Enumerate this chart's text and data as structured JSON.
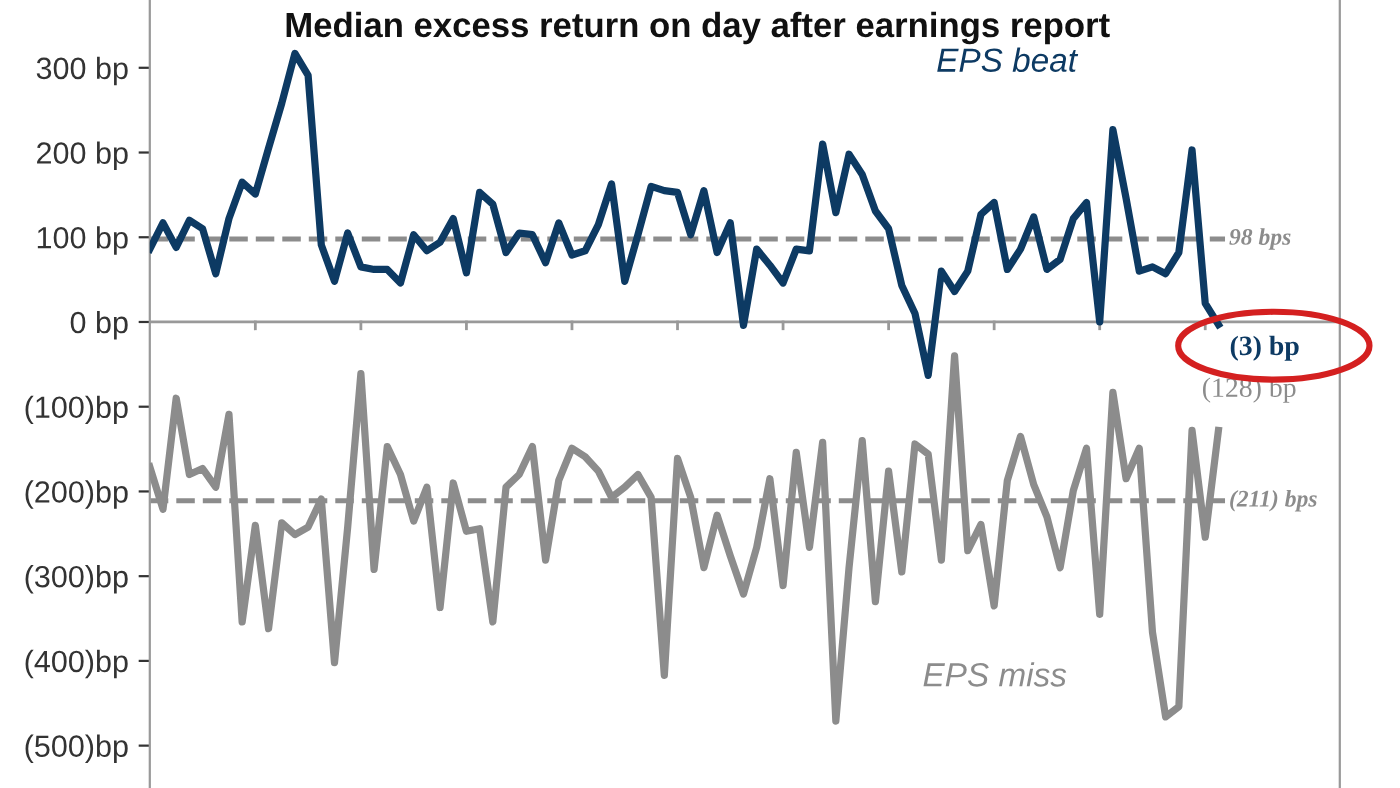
{
  "chart_data": {
    "type": "line",
    "title": "Median excess return on day after earnings report",
    "categories": [
      null,
      null,
      null,
      null,
      null,
      null,
      null,
      null,
      null,
      null,
      null,
      null,
      null,
      null,
      null,
      null,
      null,
      null,
      null,
      null,
      null,
      null,
      null,
      null,
      null,
      null,
      null,
      null,
      null,
      null,
      null,
      null,
      null,
      null,
      null,
      null,
      null,
      null,
      null,
      null,
      null,
      null,
      null,
      null,
      null,
      null,
      null,
      null,
      null,
      null,
      null,
      null,
      null,
      null,
      null,
      null,
      null,
      null,
      null,
      null,
      null,
      null,
      null,
      null,
      null,
      null,
      null,
      null,
      null,
      null,
      null,
      null,
      null,
      null,
      null,
      null,
      null,
      null,
      null,
      null,
      null,
      null
    ],
    "series": [
      {
        "name": "EPS beat",
        "color": "#0d3a63",
        "values": [
          86,
          117,
          88,
          120,
          110,
          57,
          122,
          165,
          151,
          205,
          258,
          317,
          291,
          91,
          48,
          105,
          65,
          62,
          62,
          46,
          103,
          84,
          94,
          122,
          58,
          153,
          139,
          82,
          105,
          103,
          70,
          117,
          79,
          84,
          115,
          163,
          48,
          103,
          160,
          155,
          153,
          103,
          155,
          82,
          117,
          -4,
          86,
          67,
          46,
          86,
          84,
          210,
          129,
          198,
          174,
          131,
          110,
          43,
          10,
          -63,
          60,
          36,
          60,
          127,
          141,
          62,
          86,
          124,
          62,
          74,
          122,
          141,
          0,
          227,
          146,
          60,
          65,
          57,
          82,
          203,
          22,
          -3
        ],
        "value_labels": [
          null,
          null,
          null,
          null,
          null,
          null,
          null,
          null,
          null,
          null,
          null,
          null,
          null,
          null,
          null,
          null,
          null,
          null,
          null,
          null,
          null,
          null,
          null,
          null,
          null,
          null,
          null,
          null,
          null,
          null,
          null,
          null,
          null,
          null,
          null,
          null,
          null,
          null,
          null,
          null,
          null,
          null,
          null,
          null,
          null,
          null,
          null,
          null,
          null,
          null,
          null,
          null,
          null,
          null,
          null,
          null,
          null,
          null,
          null,
          null,
          null,
          null,
          null,
          null,
          null,
          null,
          null,
          null,
          null,
          null,
          null,
          null,
          null,
          null,
          null,
          null,
          null,
          null,
          null,
          null,
          null,
          "(3) bp"
        ]
      },
      {
        "name": "EPS miss",
        "color": "#8c8c8c",
        "values": [
          -171,
          -221,
          -90,
          -180,
          -173,
          -195,
          -109,
          -354,
          -240,
          -362,
          -237,
          -251,
          -242,
          -209,
          -402,
          -242,
          -61,
          -292,
          -147,
          -180,
          -235,
          -195,
          -337,
          -190,
          -247,
          -244,
          -354,
          -195,
          -180,
          -147,
          -281,
          -187,
          -149,
          -159,
          -176,
          -207,
          -195,
          -180,
          -207,
          -417,
          -161,
          -207,
          -290,
          -228,
          -276,
          -321,
          -266,
          -185,
          -311,
          -154,
          -266,
          -142,
          -471,
          -290,
          -140,
          -330,
          -176,
          -295,
          -144,
          -156,
          -281,
          -40,
          -270,
          -239,
          -335,
          -187,
          -135,
          -192,
          -230,
          -290,
          -199,
          -149,
          -345,
          -83,
          -185,
          -149,
          -366,
          -466,
          -454,
          -128,
          -254,
          -128
        ],
        "value_labels": [
          null,
          null,
          null,
          null,
          null,
          null,
          null,
          null,
          null,
          null,
          null,
          null,
          null,
          null,
          null,
          null,
          null,
          null,
          null,
          null,
          null,
          null,
          null,
          null,
          null,
          null,
          null,
          null,
          null,
          null,
          null,
          null,
          null,
          null,
          null,
          null,
          null,
          null,
          null,
          null,
          null,
          null,
          null,
          null,
          null,
          null,
          null,
          null,
          null,
          null,
          null,
          null,
          null,
          null,
          null,
          null,
          null,
          null,
          null,
          null,
          null,
          null,
          null,
          null,
          null,
          null,
          null,
          null,
          null,
          null,
          null,
          null,
          null,
          null,
          null,
          null,
          null,
          null,
          null,
          null,
          null,
          "(128) bp"
        ]
      }
    ],
    "ylim": [
      -550,
      380
    ],
    "yticks": [
      {
        "value": 300,
        "label": "300 bp"
      },
      {
        "value": 200,
        "label": "200 bp"
      },
      {
        "value": 100,
        "label": "100 bp"
      },
      {
        "value": 0,
        "label": "0 bp"
      },
      {
        "value": -100,
        "label": "(100)bp"
      },
      {
        "value": -200,
        "label": "(200)bp"
      },
      {
        "value": -300,
        "label": "(300)bp"
      },
      {
        "value": -400,
        "label": "(400)bp"
      },
      {
        "value": -500,
        "label": "(500)bp"
      }
    ],
    "ref_lines": [
      {
        "axis": "y",
        "value": 98,
        "label": "98 bps",
        "color": "#8c8c8c",
        "line_style": "dashed"
      },
      {
        "axis": "y",
        "value": -211,
        "label": "(211) bps",
        "color": "#8c8c8c",
        "line_style": "dashed"
      }
    ],
    "grid": false,
    "legend": false,
    "marker": "none",
    "line_style": "solid"
  }
}
